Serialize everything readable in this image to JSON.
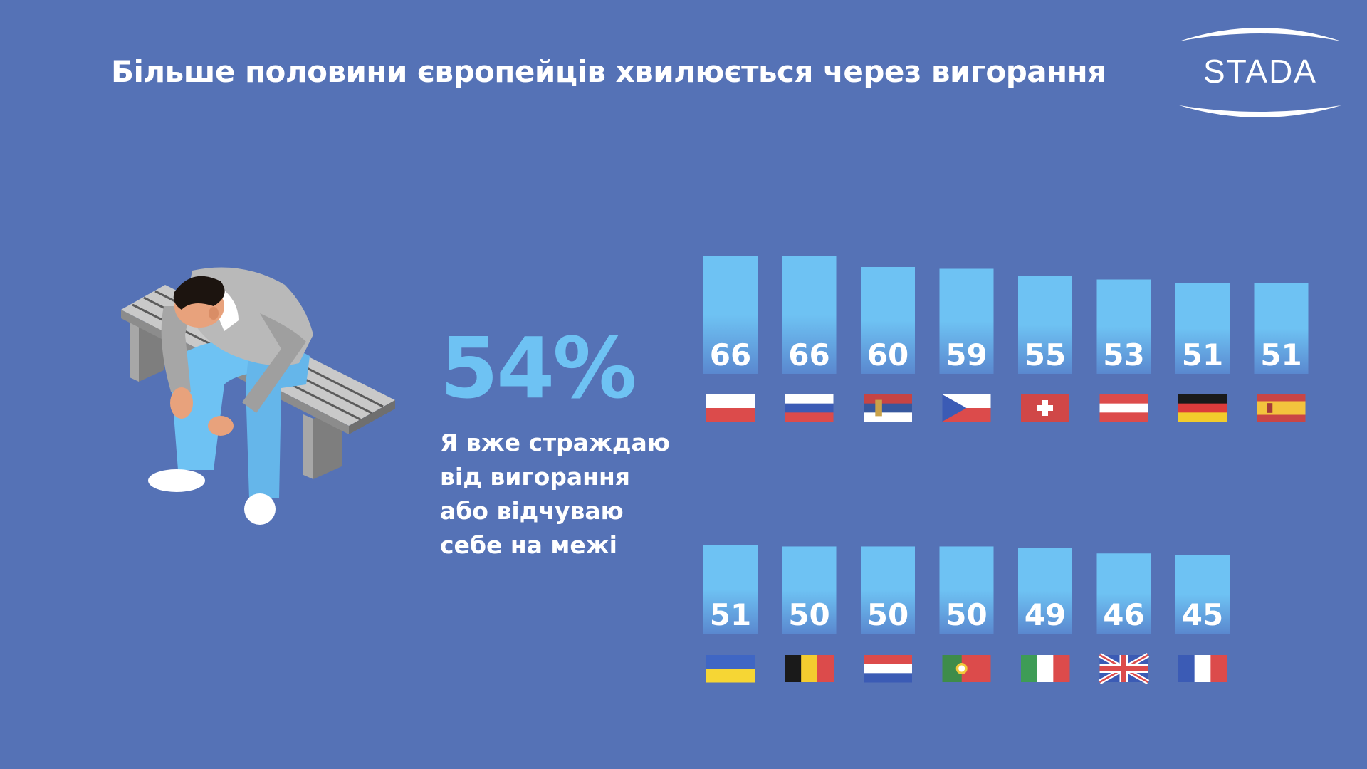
{
  "title": "Більше половини європейців хвилюється через вигорання",
  "logo": {
    "text": "STADA"
  },
  "headline": {
    "value": "54%",
    "lines": [
      "Я вже страждаю",
      "від вигорання",
      "або відчуваю",
      "себе на межі"
    ]
  },
  "colors": {
    "background": "#5572b6",
    "bar_top": "#6ec2f3",
    "bar_bottom": "#5a88cf",
    "accent": "#6ec2f3"
  },
  "chart_data": {
    "type": "bar",
    "rows": [
      {
        "values": [
          66,
          66,
          60,
          59,
          55,
          53,
          51,
          51
        ],
        "flags": [
          "flag-poland-icon",
          "flag-russia-icon",
          "flag-serbia-icon",
          "flag-czech-icon",
          "flag-switzerland-icon",
          "flag-austria-icon",
          "flag-germany-icon",
          "flag-spain-icon"
        ]
      },
      {
        "values": [
          51,
          50,
          50,
          50,
          49,
          46,
          45
        ],
        "flags": [
          "flag-ukraine-icon",
          "flag-belgium-icon",
          "flag-netherlands-icon",
          "flag-portugal-icon",
          "flag-italy-icon",
          "flag-uk-icon",
          "flag-france-icon"
        ]
      }
    ],
    "title": "",
    "xlabel": "",
    "ylabel": "",
    "grid": false
  }
}
